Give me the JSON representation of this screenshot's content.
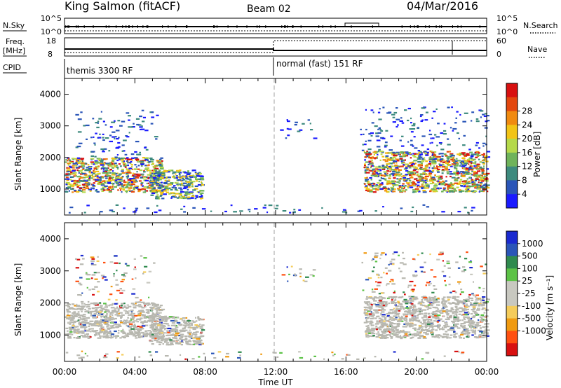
{
  "header": {
    "station": "King Salmon (fitACF)",
    "beam": "Beam 02",
    "date": "04/Mar/2016"
  },
  "strips": {
    "nsky_label": "N.Sky",
    "nsky_ticks": [
      "10^5",
      "10^0"
    ],
    "nsearch_label": "N.Search",
    "nsearch_ticks": [
      "10^5",
      "10^0"
    ],
    "freq_label_1": "Freq.",
    "freq_label_2": "[MHz]",
    "freq_ticks": [
      "18",
      "8"
    ],
    "nave_label": "Nave",
    "nave_ticks": [
      "60",
      "0"
    ],
    "cpid_label": "CPID",
    "cpid_segments": [
      {
        "start_hour": 0,
        "end_hour": 12,
        "label": "themis 3300 RF"
      },
      {
        "start_hour": 12,
        "end_hour": 24,
        "label": "normal (fast) 151 RF"
      }
    ]
  },
  "colors": {
    "power": [
      "#1a1aff",
      "#2a55b8",
      "#3d8a7e",
      "#6fb35a",
      "#b5d94a",
      "#f2c416",
      "#f08a10",
      "#e3470e",
      "#d81010"
    ],
    "velocity": [
      "#d81010",
      "#ff5010",
      "#f09a10",
      "#f5cc5a",
      "#c8c8c0",
      "#c8c8c0",
      "#5cc246",
      "#2f8a4e",
      "#2a55b8",
      "#1a2ad0"
    ],
    "ground_scatter": "#b8b8b0",
    "dashed_marker": "#b0b0b0"
  },
  "chart_data": [
    {
      "type": "heatmap",
      "title": "Power",
      "xlabel": "Time UT",
      "ylabel": "Slant Range [km]",
      "xlim_hours": [
        0,
        24
      ],
      "ylim": [
        180,
        4500
      ],
      "y_ticks": [
        1000,
        2000,
        3000,
        4000
      ],
      "x_tick_labels": [
        "00:00",
        "04:00",
        "08:00",
        "12:00",
        "16:00",
        "20:00",
        "00:00"
      ],
      "colorbar_label": "Power [dB]",
      "colorbar_ticks": [
        "4",
        "8",
        "12",
        "16",
        "20",
        "24",
        "28"
      ],
      "regions": [
        {
          "start_hour": 0.0,
          "end_hour": 5.5,
          "range_min": 900,
          "range_max": 2000,
          "level": "strong"
        },
        {
          "start_hour": 0.5,
          "end_hour": 5.2,
          "range_min": 2000,
          "range_max": 3500,
          "level": "weak"
        },
        {
          "start_hour": 4.8,
          "end_hour": 7.8,
          "range_min": 700,
          "range_max": 1600,
          "level": "medium"
        },
        {
          "start_hour": 12.2,
          "end_hour": 14.2,
          "range_min": 2600,
          "range_max": 3200,
          "level": "weak"
        },
        {
          "start_hour": 17.0,
          "end_hour": 24.0,
          "range_min": 900,
          "range_max": 2200,
          "level": "strong"
        },
        {
          "start_hour": 16.8,
          "end_hour": 24.0,
          "range_min": 2200,
          "range_max": 3600,
          "level": "weak"
        },
        {
          "start_hour": 0.0,
          "end_hour": 24.0,
          "range_min": 250,
          "range_max": 500,
          "level": "sparse"
        }
      ],
      "dashed_marker_hour": 12.0
    },
    {
      "type": "heatmap",
      "title": "Velocity",
      "xlabel": "Time UT",
      "ylabel": "Slant Range [km]",
      "xlim_hours": [
        0,
        24
      ],
      "ylim": [
        180,
        4500
      ],
      "y_ticks": [
        1000,
        2000,
        3000,
        4000
      ],
      "x_tick_labels": [
        "00:00",
        "04:00",
        "08:00",
        "12:00",
        "16:00",
        "20:00",
        "00:00"
      ],
      "colorbar_label": "Velocity [m s⁻¹]",
      "colorbar_ticks": [
        "1000",
        "500",
        "100",
        "25",
        "-25",
        "-100",
        "-500",
        "-1000"
      ],
      "regions": [
        {
          "start_hour": 0.0,
          "end_hour": 5.5,
          "range_min": 900,
          "range_max": 2000,
          "level": "ground"
        },
        {
          "start_hour": 0.5,
          "end_hour": 5.2,
          "range_min": 2000,
          "range_max": 3500,
          "level": "mixed"
        },
        {
          "start_hour": 4.8,
          "end_hour": 7.8,
          "range_min": 700,
          "range_max": 1600,
          "level": "ground"
        },
        {
          "start_hour": 12.2,
          "end_hour": 14.2,
          "range_min": 2600,
          "range_max": 3200,
          "level": "mixed"
        },
        {
          "start_hour": 17.0,
          "end_hour": 24.0,
          "range_min": 900,
          "range_max": 2200,
          "level": "ground"
        },
        {
          "start_hour": 16.8,
          "end_hour": 24.0,
          "range_min": 2200,
          "range_max": 3600,
          "level": "mixed"
        },
        {
          "start_hour": 0.0,
          "end_hour": 24.0,
          "range_min": 250,
          "range_max": 500,
          "level": "sparse"
        }
      ],
      "dashed_marker_hour": 12.0
    }
  ]
}
